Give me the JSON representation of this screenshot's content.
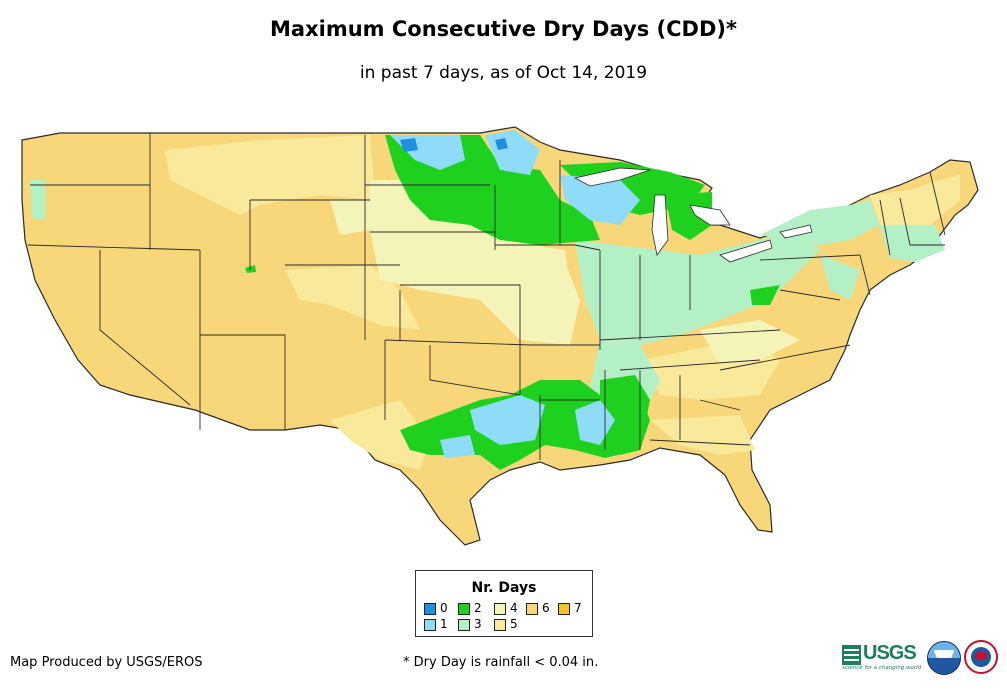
{
  "header": {
    "title": "Maximum Consecutive Dry Days (CDD)*",
    "subtitle": "in past 7 days, as of Oct 14, 2019"
  },
  "legend": {
    "title": "Nr. Days",
    "items": [
      {
        "label": "0",
        "color": "#1f8fe0"
      },
      {
        "label": "1",
        "color": "#8fdcf8"
      },
      {
        "label": "2",
        "color": "#1fd11f"
      },
      {
        "label": "3",
        "color": "#b4f0c6"
      },
      {
        "label": "4",
        "color": "#f5f4b8"
      },
      {
        "label": "5",
        "color": "#f9e99a"
      },
      {
        "label": "6",
        "color": "#f8d77a"
      },
      {
        "label": "7",
        "color": "#f5c22a"
      }
    ]
  },
  "footer": {
    "credit": "Map Produced by USGS/EROS",
    "footnote": "* Dry Day is rainfall < 0.04 in."
  },
  "logos": {
    "usgs_text": "USGS",
    "usgs_tagline": "science for a changing world",
    "noaa_text": "noaa"
  },
  "map": {
    "region": "Contiguous United States",
    "border_color": "#2a2a2a"
  }
}
